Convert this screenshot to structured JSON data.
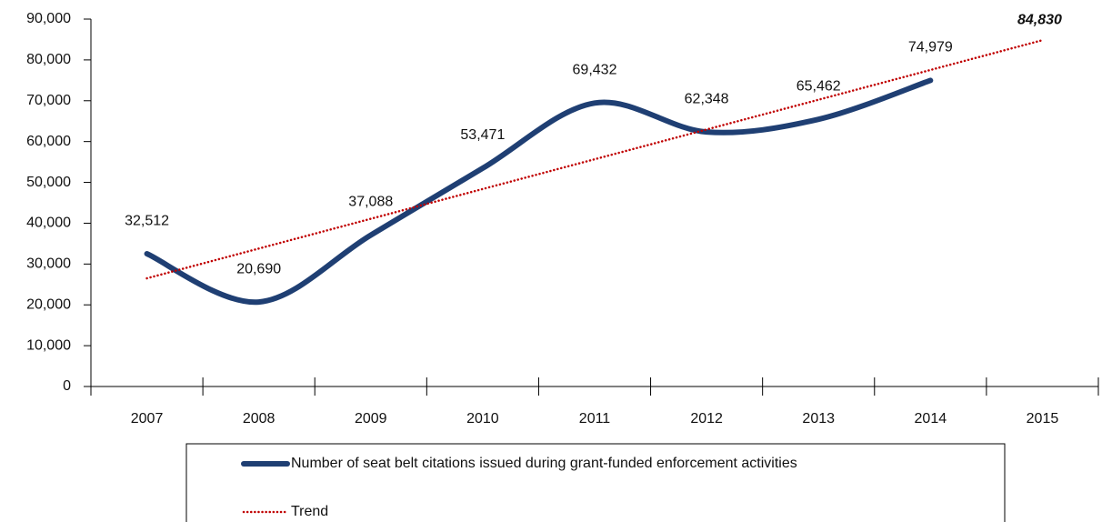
{
  "chart_data": {
    "type": "line",
    "categories": [
      "2007",
      "2008",
      "2009",
      "2010",
      "2011",
      "2012",
      "2013",
      "2014",
      "2015"
    ],
    "series": [
      {
        "name": "Number of seat belt citations issued during grant-funded enforcement activities",
        "color": "#1f3f73",
        "style": "solid",
        "smooth": true,
        "values": [
          32512,
          20690,
          37088,
          53471,
          69432,
          62348,
          65462,
          74979,
          null
        ],
        "value_labels": [
          "32,512",
          "20,690",
          "37,088",
          "53,471",
          "69,432",
          "62,348",
          "65,462",
          "74,979",
          null
        ]
      },
      {
        "name": "Trend",
        "color": "#c00000",
        "style": "dotted",
        "smooth": false,
        "values": [
          26500,
          33791,
          41082,
          48374,
          55665,
          62956,
          70247,
          77539,
          84830
        ],
        "value_labels": [
          null,
          null,
          null,
          null,
          null,
          null,
          null,
          null,
          "84,830"
        ]
      }
    ],
    "ylim": [
      0,
      90000
    ],
    "yticks": [
      0,
      {
        "value": 10000,
        "label": "10,000"
      },
      {
        "value": 20000,
        "label": "20,000"
      },
      {
        "value": 30000,
        "label": "30,000"
      },
      {
        "value": 40000,
        "label": "40,000"
      },
      {
        "value": 50000,
        "label": "50,000"
      },
      {
        "value": 60000,
        "label": "60,000"
      },
      {
        "value": 70000,
        "label": "70,000"
      },
      {
        "value": 80000,
        "label": "80,000"
      },
      {
        "value": 90000,
        "label": "90,000"
      }
    ],
    "grid": false,
    "legend": "bottom"
  }
}
